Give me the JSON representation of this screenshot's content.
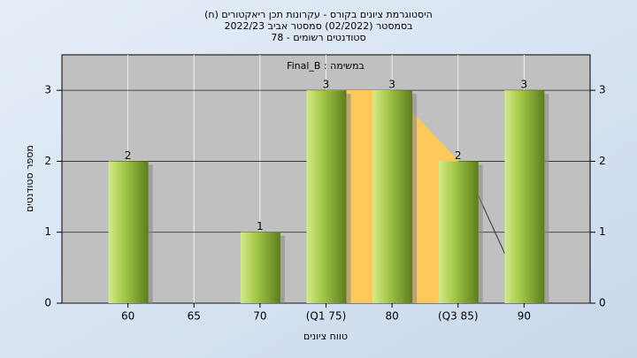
{
  "chart_data": {
    "type": "bar",
    "title": "היסטוגרמת ציונים בקורס - עקרונות תכן ריאקטורים (ח)",
    "subtitle": [
      "בסמסטר (02/2022) סמסטר אביב 2022/23",
      "סטודנטים רשומים - 78"
    ],
    "annotation": "Final_B : במשימה",
    "x_label": "טווח ציונים",
    "y_label": "מספר סטודנטים",
    "categories": [
      "60",
      "65",
      "70",
      "(Q1 75)",
      "80",
      "(Q3 85)",
      "90"
    ],
    "values": [
      2,
      0,
      1,
      3,
      3,
      2,
      3
    ],
    "color": "#9cc43a",
    "ylim": [
      0,
      3.5
    ],
    "yticks": [
      0,
      1,
      2,
      3
    ],
    "y2lim": [
      0,
      3.5
    ],
    "y2ticks": [
      0,
      1,
      2,
      3
    ],
    "grid": true
  }
}
